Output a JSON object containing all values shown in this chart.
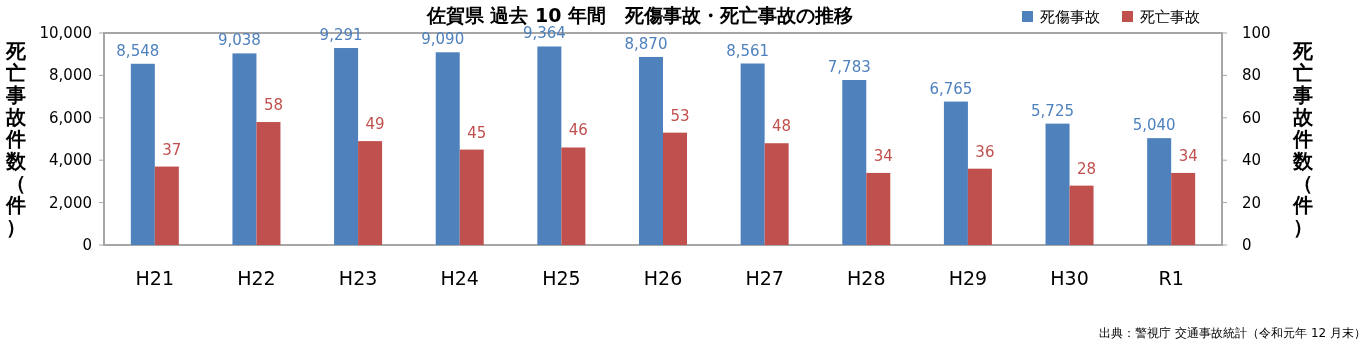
{
  "chart_data": {
    "type": "bar",
    "title": "佐賀県 過去 10 年間　死傷事故・死亡事故の推移",
    "categories": [
      "H21",
      "H22",
      "H23",
      "H24",
      "H25",
      "H26",
      "H27",
      "H28",
      "H29",
      "H30",
      "R1"
    ],
    "series": [
      {
        "name": "死傷事故",
        "color": "#4f81bd",
        "values": [
          8548,
          9038,
          9291,
          9090,
          9364,
          8870,
          8561,
          7783,
          6765,
          5725,
          5040
        ],
        "value_labels": [
          "8,548",
          "9,038",
          "9,291",
          "9,090",
          "9,364",
          "8,870",
          "8,561",
          "7,783",
          "6,765",
          "5,725",
          "5,040"
        ]
      },
      {
        "name": "死亡事故",
        "color": "#c0504d",
        "axis": "y2",
        "values": [
          37,
          58,
          49,
          45,
          46,
          53,
          48,
          34,
          36,
          28,
          34
        ],
        "value_labels": [
          "37",
          "58",
          "49",
          "45",
          "46",
          "53",
          "48",
          "34",
          "36",
          "28",
          "34"
        ]
      }
    ],
    "ylim": [
      0,
      10000
    ],
    "yticks": [
      0,
      {
        "value": 2000,
        "label": "2,000"
      },
      {
        "value": 4000,
        "label": "4,000"
      },
      {
        "value": 6000,
        "label": "6,000"
      },
      {
        "value": 8000,
        "label": "8,000"
      },
      {
        "value": 10000,
        "label": "10,000"
      }
    ],
    "y2lim": [
      0,
      100
    ],
    "y2ticks": [
      0,
      20,
      40,
      60,
      80,
      100
    ],
    "ylabel": "死亡事故件数（件）",
    "y2label": "死亡事故件数（件）",
    "legend": "top right",
    "grid": false,
    "annotations": [
      "出典：警視庁 交通事故統計（令和元年 12 月末）"
    ]
  }
}
